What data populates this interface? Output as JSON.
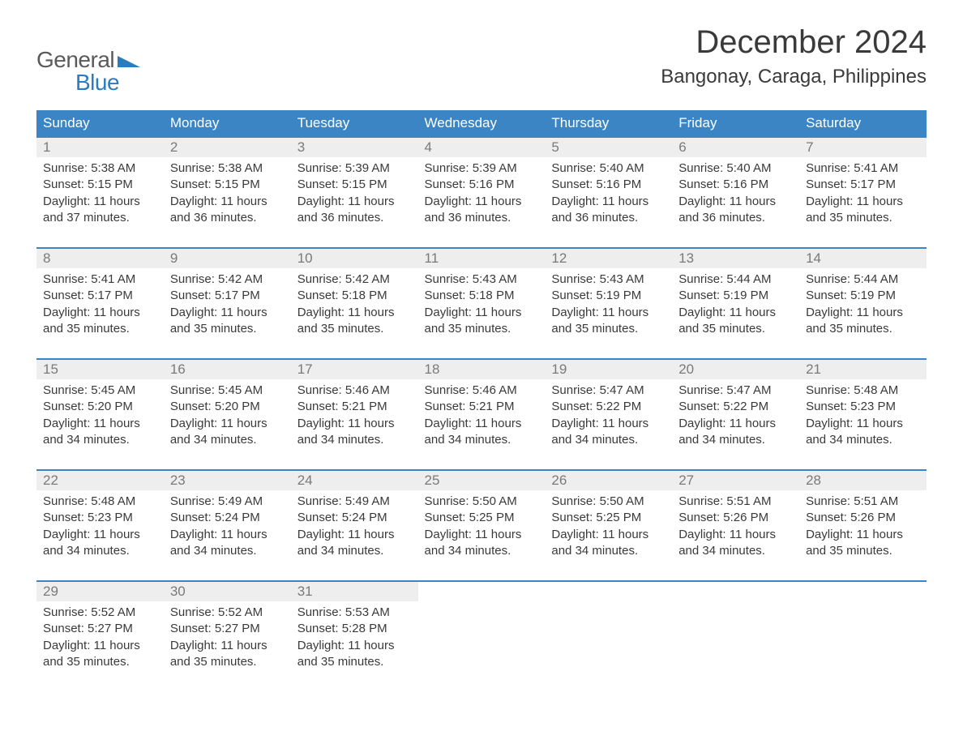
{
  "logo": {
    "general": "General",
    "blue": "Blue",
    "triangle_color": "#2b7bbf"
  },
  "title": "December 2024",
  "location": "Bangonay, Caraga, Philippines",
  "colors": {
    "header_bg": "#3b85c4",
    "header_text": "#ffffff",
    "daynum_bg": "#eeeeee",
    "daynum_text": "#7a7a7a",
    "body_text": "#3a3a3a",
    "accent": "#2b7bbf"
  },
  "weekdays": [
    "Sunday",
    "Monday",
    "Tuesday",
    "Wednesday",
    "Thursday",
    "Friday",
    "Saturday"
  ],
  "weeks": [
    [
      {
        "n": "1",
        "sr": "5:38 AM",
        "ss": "5:15 PM",
        "dl": "11 hours and 37 minutes."
      },
      {
        "n": "2",
        "sr": "5:38 AM",
        "ss": "5:15 PM",
        "dl": "11 hours and 36 minutes."
      },
      {
        "n": "3",
        "sr": "5:39 AM",
        "ss": "5:15 PM",
        "dl": "11 hours and 36 minutes."
      },
      {
        "n": "4",
        "sr": "5:39 AM",
        "ss": "5:16 PM",
        "dl": "11 hours and 36 minutes."
      },
      {
        "n": "5",
        "sr": "5:40 AM",
        "ss": "5:16 PM",
        "dl": "11 hours and 36 minutes."
      },
      {
        "n": "6",
        "sr": "5:40 AM",
        "ss": "5:16 PM",
        "dl": "11 hours and 36 minutes."
      },
      {
        "n": "7",
        "sr": "5:41 AM",
        "ss": "5:17 PM",
        "dl": "11 hours and 35 minutes."
      }
    ],
    [
      {
        "n": "8",
        "sr": "5:41 AM",
        "ss": "5:17 PM",
        "dl": "11 hours and 35 minutes."
      },
      {
        "n": "9",
        "sr": "5:42 AM",
        "ss": "5:17 PM",
        "dl": "11 hours and 35 minutes."
      },
      {
        "n": "10",
        "sr": "5:42 AM",
        "ss": "5:18 PM",
        "dl": "11 hours and 35 minutes."
      },
      {
        "n": "11",
        "sr": "5:43 AM",
        "ss": "5:18 PM",
        "dl": "11 hours and 35 minutes."
      },
      {
        "n": "12",
        "sr": "5:43 AM",
        "ss": "5:19 PM",
        "dl": "11 hours and 35 minutes."
      },
      {
        "n": "13",
        "sr": "5:44 AM",
        "ss": "5:19 PM",
        "dl": "11 hours and 35 minutes."
      },
      {
        "n": "14",
        "sr": "5:44 AM",
        "ss": "5:19 PM",
        "dl": "11 hours and 35 minutes."
      }
    ],
    [
      {
        "n": "15",
        "sr": "5:45 AM",
        "ss": "5:20 PM",
        "dl": "11 hours and 34 minutes."
      },
      {
        "n": "16",
        "sr": "5:45 AM",
        "ss": "5:20 PM",
        "dl": "11 hours and 34 minutes."
      },
      {
        "n": "17",
        "sr": "5:46 AM",
        "ss": "5:21 PM",
        "dl": "11 hours and 34 minutes."
      },
      {
        "n": "18",
        "sr": "5:46 AM",
        "ss": "5:21 PM",
        "dl": "11 hours and 34 minutes."
      },
      {
        "n": "19",
        "sr": "5:47 AM",
        "ss": "5:22 PM",
        "dl": "11 hours and 34 minutes."
      },
      {
        "n": "20",
        "sr": "5:47 AM",
        "ss": "5:22 PM",
        "dl": "11 hours and 34 minutes."
      },
      {
        "n": "21",
        "sr": "5:48 AM",
        "ss": "5:23 PM",
        "dl": "11 hours and 34 minutes."
      }
    ],
    [
      {
        "n": "22",
        "sr": "5:48 AM",
        "ss": "5:23 PM",
        "dl": "11 hours and 34 minutes."
      },
      {
        "n": "23",
        "sr": "5:49 AM",
        "ss": "5:24 PM",
        "dl": "11 hours and 34 minutes."
      },
      {
        "n": "24",
        "sr": "5:49 AM",
        "ss": "5:24 PM",
        "dl": "11 hours and 34 minutes."
      },
      {
        "n": "25",
        "sr": "5:50 AM",
        "ss": "5:25 PM",
        "dl": "11 hours and 34 minutes."
      },
      {
        "n": "26",
        "sr": "5:50 AM",
        "ss": "5:25 PM",
        "dl": "11 hours and 34 minutes."
      },
      {
        "n": "27",
        "sr": "5:51 AM",
        "ss": "5:26 PM",
        "dl": "11 hours and 34 minutes."
      },
      {
        "n": "28",
        "sr": "5:51 AM",
        "ss": "5:26 PM",
        "dl": "11 hours and 35 minutes."
      }
    ],
    [
      {
        "n": "29",
        "sr": "5:52 AM",
        "ss": "5:27 PM",
        "dl": "11 hours and 35 minutes."
      },
      {
        "n": "30",
        "sr": "5:52 AM",
        "ss": "5:27 PM",
        "dl": "11 hours and 35 minutes."
      },
      {
        "n": "31",
        "sr": "5:53 AM",
        "ss": "5:28 PM",
        "dl": "11 hours and 35 minutes."
      },
      null,
      null,
      null,
      null
    ]
  ],
  "labels": {
    "sunrise": "Sunrise:",
    "sunset": "Sunset:",
    "daylight": "Daylight:"
  }
}
